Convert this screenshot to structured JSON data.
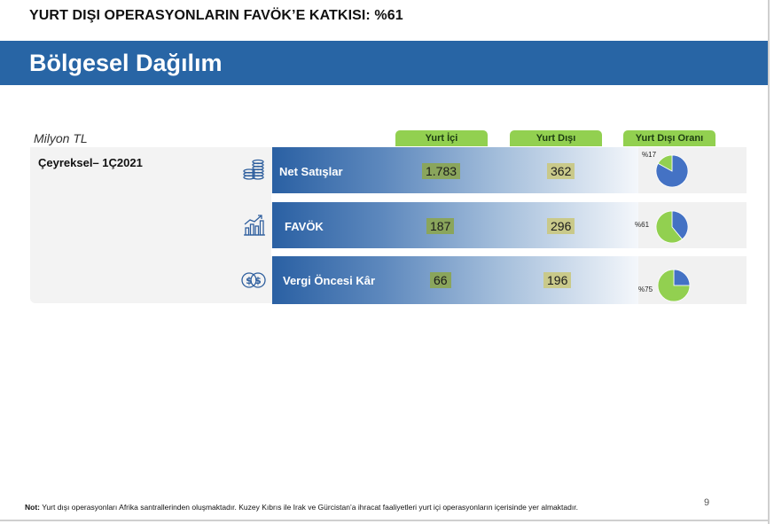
{
  "slide": {
    "top_title": "YURT DIŞI OPERASYONLARIN FAVÖK’E KATKISI: %61",
    "banner_title": "Bölgesel Dağılım",
    "unit": "Milyon TL",
    "period": "Çeyreksel– 1Ç2021",
    "columns": [
      "Yurt İçi",
      "Yurt Dışı",
      "Yurt Dışı Oranı"
    ],
    "rows": [
      {
        "label": "Net Satışlar",
        "domestic": "1.783",
        "foreign": "362",
        "share_label": "%17",
        "share": 0.17,
        "icon": "coin-stack-icon"
      },
      {
        "label": "FAVÖK",
        "domestic": "187",
        "foreign": "296",
        "share_label": "%61",
        "share": 0.61,
        "icon": "bar-chart-growth-icon"
      },
      {
        "label": "Vergi Öncesi Kâr",
        "domestic": "66",
        "foreign": "196",
        "share_label": "%75",
        "share": 0.75,
        "icon": "dollar-coins-icon"
      }
    ],
    "note_prefix": "Not:",
    "note": " Yurt dışı operasyonları Afrika santrallerinden oluşmaktadır. Kuzey Kıbrıs ile Irak ve Gürcistan’a ihracat faaliyetleri yurt içi operasyonların içerisinde yer almaktadır.",
    "page_number": "9"
  },
  "colors": {
    "banner": "#2865a5",
    "pill": "#92d050",
    "pie_domestic": "#4472c4",
    "pie_foreign": "#92d050",
    "value_highlight_domestic": "#8aa55c",
    "value_highlight_foreign": "#c9c98a"
  }
}
